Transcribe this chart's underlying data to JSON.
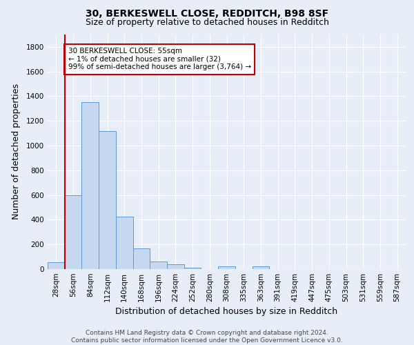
{
  "title_line1": "30, BERKESWELL CLOSE, REDDITCH, B98 8SF",
  "title_line2": "Size of property relative to detached houses in Redditch",
  "xlabel": "Distribution of detached houses by size in Redditch",
  "ylabel": "Number of detached properties",
  "categories": [
    "28sqm",
    "56sqm",
    "84sqm",
    "112sqm",
    "140sqm",
    "168sqm",
    "196sqm",
    "224sqm",
    "252sqm",
    "280sqm",
    "308sqm",
    "335sqm",
    "363sqm",
    "391sqm",
    "419sqm",
    "447sqm",
    "475sqm",
    "503sqm",
    "531sqm",
    "559sqm",
    "587sqm"
  ],
  "bar_values": [
    55,
    600,
    1350,
    1120,
    425,
    170,
    60,
    37,
    12,
    0,
    20,
    0,
    20,
    0,
    0,
    0,
    0,
    0,
    0,
    0,
    0
  ],
  "bar_color": "#c6d9f0",
  "bar_edge_color": "#5b9bd5",
  "vline_color": "#c00000",
  "annotation_text": "30 BERKESWELL CLOSE: 55sqm\n← 1% of detached houses are smaller (32)\n99% of semi-detached houses are larger (3,764) →",
  "annotation_box_color": "#ffffff",
  "annotation_box_edge": "#c00000",
  "ylim": [
    0,
    1900
  ],
  "yticks": [
    0,
    200,
    400,
    600,
    800,
    1000,
    1200,
    1400,
    1600,
    1800
  ],
  "bg_color": "#e8eef8",
  "plot_bg_color": "#e8eef8",
  "grid_color": "#ffffff",
  "footer_text": "Contains HM Land Registry data © Crown copyright and database right 2024.\nContains public sector information licensed under the Open Government Licence v3.0.",
  "title_fontsize": 10,
  "subtitle_fontsize": 9,
  "axis_label_fontsize": 9,
  "tick_fontsize": 7.5,
  "annotation_fontsize": 7.5,
  "footer_fontsize": 6.5
}
